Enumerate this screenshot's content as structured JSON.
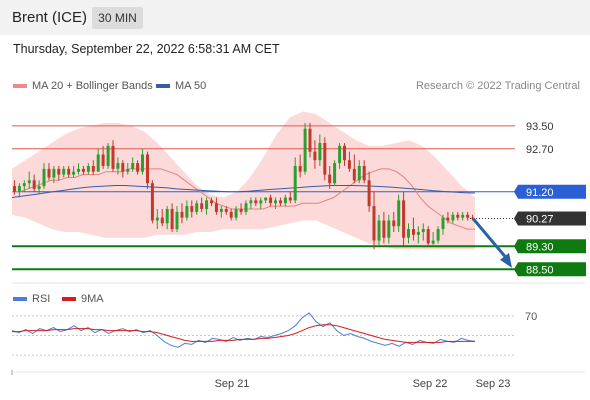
{
  "header": {
    "title": "Brent (ICE)",
    "timeframe": "30 MIN"
  },
  "timestamp": "Thursday, September 22, 2022 6:58:31 AM CET",
  "legend": {
    "ma20_label": "MA 20 + Bollinger Bands",
    "ma50_label": "MA 50",
    "credit": "Research © 2022 Trading Central"
  },
  "rsi_legend": {
    "rsi_label": "RSI",
    "ma9_label": "9MA"
  },
  "colors": {
    "bollinger_fill": "#fbd3d3",
    "ma20": "#e78080",
    "ma50": "#3a5ba8",
    "up": "#2e9e2e",
    "down": "#c0392b",
    "resistance": "#e05a4f",
    "support": "#0f7a0f",
    "pivot": "#2a5fd6",
    "current": "#333333",
    "arrow": "#2b61a8",
    "rsi": "#4a7fd4",
    "rsi_ma": "#d02020"
  },
  "chart_data": {
    "type": "candlestick",
    "x_ticks": [
      "Sep 21",
      "Sep 22",
      "Sep 23"
    ],
    "ylim": [
      88.3,
      94.4
    ],
    "levels": [
      {
        "value": 93.5,
        "label": "93.50",
        "kind": "resistance"
      },
      {
        "value": 92.7,
        "label": "92.70",
        "kind": "resistance"
      },
      {
        "value": 91.2,
        "label": "91.20",
        "kind": "pivot"
      },
      {
        "value": 90.27,
        "label": "90.27",
        "kind": "current"
      },
      {
        "value": 89.3,
        "label": "89.30",
        "kind": "support"
      },
      {
        "value": 88.5,
        "label": "88.50",
        "kind": "support"
      }
    ],
    "candles": [
      [
        91.4,
        91.6,
        91.1,
        91.2
      ],
      [
        91.2,
        91.5,
        91.0,
        91.4
      ],
      [
        91.4,
        91.6,
        91.2,
        91.5
      ],
      [
        91.5,
        91.9,
        91.3,
        91.6
      ],
      [
        91.6,
        91.8,
        91.2,
        91.3
      ],
      [
        91.3,
        91.6,
        91.1,
        91.4
      ],
      [
        91.4,
        92.2,
        91.3,
        92.0
      ],
      [
        92.0,
        92.2,
        91.6,
        91.7
      ],
      [
        91.7,
        92.1,
        91.5,
        92.0
      ],
      [
        92.0,
        92.1,
        91.6,
        91.8
      ],
      [
        91.8,
        92.1,
        91.7,
        92.0
      ],
      [
        92.0,
        92.1,
        91.7,
        91.8
      ],
      [
        91.8,
        92.1,
        91.7,
        91.9
      ],
      [
        91.9,
        92.2,
        91.8,
        92.0
      ],
      [
        92.0,
        92.1,
        91.8,
        91.9
      ],
      [
        91.9,
        92.2,
        91.8,
        92.1
      ],
      [
        92.1,
        92.3,
        91.8,
        91.9
      ],
      [
        91.9,
        92.7,
        91.9,
        92.5
      ],
      [
        92.5,
        92.8,
        92.0,
        92.1
      ],
      [
        92.1,
        92.9,
        92.0,
        92.8
      ],
      [
        92.8,
        93.0,
        91.9,
        92.0
      ],
      [
        92.0,
        92.4,
        91.8,
        92.2
      ],
      [
        92.2,
        92.3,
        91.7,
        91.9
      ],
      [
        91.9,
        92.2,
        91.8,
        92.0
      ],
      [
        92.0,
        92.4,
        91.9,
        92.2
      ],
      [
        92.2,
        92.3,
        91.8,
        91.9
      ],
      [
        91.9,
        92.7,
        91.8,
        92.5
      ],
      [
        92.5,
        92.6,
        91.3,
        91.5
      ],
      [
        91.5,
        91.6,
        90.1,
        90.2
      ],
      [
        90.2,
        90.6,
        89.9,
        90.3
      ],
      [
        90.3,
        90.6,
        90.0,
        90.1
      ],
      [
        90.1,
        90.7,
        89.9,
        90.6
      ],
      [
        90.6,
        90.8,
        89.8,
        89.9
      ],
      [
        89.9,
        90.7,
        89.8,
        90.5
      ],
      [
        90.5,
        90.8,
        90.1,
        90.3
      ],
      [
        90.3,
        90.9,
        90.2,
        90.7
      ],
      [
        90.7,
        90.9,
        90.3,
        90.5
      ],
      [
        90.5,
        90.9,
        90.4,
        90.8
      ],
      [
        90.8,
        91.0,
        90.5,
        90.6
      ],
      [
        90.6,
        91.0,
        90.4,
        90.9
      ],
      [
        90.9,
        91.0,
        90.7,
        90.8
      ],
      [
        90.8,
        91.0,
        90.4,
        90.5
      ],
      [
        90.5,
        90.7,
        90.3,
        90.6
      ],
      [
        90.6,
        90.7,
        90.4,
        90.5
      ],
      [
        90.5,
        90.6,
        90.2,
        90.3
      ],
      [
        90.3,
        90.7,
        90.2,
        90.6
      ],
      [
        90.6,
        90.8,
        90.4,
        90.5
      ],
      [
        90.5,
        90.9,
        90.4,
        90.8
      ],
      [
        90.8,
        91.0,
        90.6,
        90.9
      ],
      [
        90.9,
        91.0,
        90.7,
        90.8
      ],
      [
        90.8,
        91.0,
        90.6,
        90.9
      ],
      [
        90.9,
        91.0,
        90.8,
        91.0
      ],
      [
        91.0,
        91.1,
        90.7,
        90.8
      ],
      [
        90.8,
        91.0,
        90.6,
        90.9
      ],
      [
        90.9,
        91.0,
        90.7,
        90.8
      ],
      [
        90.8,
        91.1,
        90.7,
        91.0
      ],
      [
        91.0,
        91.2,
        90.8,
        90.9
      ],
      [
        90.9,
        92.4,
        90.8,
        92.1
      ],
      [
        92.1,
        92.5,
        91.7,
        91.9
      ],
      [
        91.9,
        93.6,
        91.8,
        93.4
      ],
      [
        93.4,
        93.6,
        92.4,
        92.6
      ],
      [
        92.6,
        93.0,
        92.0,
        92.3
      ],
      [
        92.3,
        93.2,
        92.1,
        92.9
      ],
      [
        92.9,
        93.1,
        91.6,
        91.8
      ],
      [
        91.8,
        92.1,
        91.3,
        91.5
      ],
      [
        91.5,
        92.3,
        91.4,
        92.2
      ],
      [
        92.2,
        92.9,
        92.0,
        92.8
      ],
      [
        92.8,
        92.9,
        92.1,
        92.3
      ],
      [
        92.3,
        92.6,
        91.9,
        92.0
      ],
      [
        92.0,
        92.5,
        91.5,
        91.6
      ],
      [
        91.6,
        92.3,
        91.5,
        92.1
      ],
      [
        92.1,
        92.3,
        91.5,
        91.6
      ],
      [
        91.6,
        91.9,
        90.5,
        90.7
      ],
      [
        90.7,
        91.2,
        89.2,
        89.5
      ],
      [
        89.5,
        90.4,
        89.3,
        90.2
      ],
      [
        90.2,
        90.5,
        89.4,
        89.6
      ],
      [
        89.6,
        90.4,
        89.4,
        90.2
      ],
      [
        90.2,
        90.5,
        89.8,
        90.0
      ],
      [
        90.0,
        91.1,
        89.8,
        90.9
      ],
      [
        90.9,
        91.2,
        89.3,
        89.6
      ],
      [
        89.6,
        90.1,
        89.4,
        89.9
      ],
      [
        89.9,
        90.3,
        89.5,
        89.7
      ],
      [
        89.7,
        90.0,
        89.4,
        89.8
      ],
      [
        89.8,
        90.1,
        89.5,
        89.9
      ],
      [
        89.9,
        90.0,
        89.3,
        89.4
      ],
      [
        89.4,
        89.8,
        89.3,
        89.5
      ],
      [
        89.5,
        90.0,
        89.4,
        89.9
      ],
      [
        89.9,
        90.4,
        89.7,
        90.3
      ],
      [
        90.3,
        90.5,
        90.1,
        90.2
      ],
      [
        90.2,
        90.5,
        90.1,
        90.4
      ],
      [
        90.4,
        90.5,
        90.2,
        90.3
      ],
      [
        90.3,
        90.5,
        90.2,
        90.4
      ],
      [
        90.4,
        90.5,
        90.2,
        90.3
      ],
      [
        90.3,
        90.4,
        90.2,
        90.27
      ]
    ],
    "ma20": [
      91.2,
      91.2,
      91.3,
      91.4,
      91.5,
      91.6,
      91.6,
      91.7,
      91.7,
      91.8,
      91.8,
      91.8,
      91.9,
      91.9,
      91.9,
      92.0,
      92.0,
      92.0,
      92.0,
      92.0,
      91.9,
      91.8,
      91.6,
      91.4,
      91.2,
      91.0,
      90.8,
      90.7,
      90.6,
      90.6,
      90.6,
      90.6,
      90.6,
      90.7,
      90.7,
      90.7,
      90.7,
      90.8,
      90.8,
      90.8,
      90.9,
      91.0,
      91.2,
      91.4,
      91.6,
      91.8,
      91.9,
      92.0,
      92.0,
      91.9,
      91.7,
      91.4,
      91.0,
      90.7,
      90.5,
      90.3,
      90.1,
      90.0,
      89.9,
      89.9
    ],
    "ma50": [
      91.0,
      91.05,
      91.1,
      91.15,
      91.2,
      91.25,
      91.3,
      91.35,
      91.38,
      91.4,
      91.42,
      91.42,
      91.4,
      91.38,
      91.36,
      91.34,
      91.3,
      91.28,
      91.26,
      91.24,
      91.22,
      91.2,
      91.2,
      91.22,
      91.25,
      91.28,
      91.3,
      91.33,
      91.35,
      91.38,
      91.4,
      91.42,
      91.42,
      91.42,
      91.41,
      91.4,
      91.38,
      91.36,
      91.33,
      91.3,
      91.27,
      91.24,
      91.21,
      91.19,
      91.17,
      91.16
    ],
    "bb_upper": [
      92.0,
      92.3,
      92.6,
      92.9,
      93.2,
      93.4,
      93.5,
      93.6,
      93.6,
      93.5,
      93.3,
      92.9,
      92.4,
      91.9,
      91.4,
      91.1,
      91.0,
      91.2,
      91.7,
      92.4,
      93.2,
      93.8,
      94.0,
      93.9,
      93.6,
      93.3,
      93.0,
      92.8,
      92.8,
      92.9,
      93.0,
      92.8,
      92.4,
      91.9,
      91.4,
      91.0
    ],
    "bb_lower": [
      90.4,
      90.3,
      90.1,
      89.9,
      89.8,
      89.8,
      89.7,
      89.6,
      89.6,
      89.6,
      89.6,
      89.7,
      89.7,
      89.7,
      89.8,
      89.8,
      89.9,
      89.9,
      89.9,
      89.9,
      90.0,
      90.1,
      90.2,
      90.2,
      90.0,
      89.8,
      89.6,
      89.4,
      89.3,
      89.2,
      89.2,
      89.2,
      89.2,
      89.2,
      89.2,
      89.2
    ],
    "rsi": {
      "ticks": [
        "70"
      ],
      "ylim": [
        20,
        80
      ],
      "rsi": [
        55,
        53,
        56,
        52,
        57,
        55,
        58,
        54,
        56,
        60,
        55,
        58,
        53,
        56,
        52,
        55,
        57,
        54,
        56,
        53,
        55,
        50,
        44,
        40,
        38,
        42,
        41,
        45,
        43,
        47,
        46,
        44,
        48,
        45,
        47,
        46,
        49,
        48,
        50,
        52,
        55,
        60,
        68,
        73,
        64,
        59,
        63,
        55,
        50,
        52,
        49,
        47,
        44,
        42,
        40,
        42,
        39,
        43,
        41,
        45,
        43,
        42,
        46,
        44,
        43,
        47,
        45,
        44
      ],
      "ma9": [
        54,
        54,
        55,
        55,
        55,
        55,
        56,
        56,
        56,
        57,
        57,
        57,
        56,
        56,
        55,
        55,
        55,
        55,
        55,
        54,
        54,
        53,
        51,
        49,
        47,
        45,
        44,
        44,
        44,
        44,
        45,
        45,
        45,
        46,
        46,
        46,
        47,
        47,
        48,
        49,
        50,
        52,
        55,
        58,
        60,
        61,
        61,
        60,
        58,
        56,
        54,
        52,
        50,
        48,
        46,
        45,
        44,
        43,
        43,
        43,
        43,
        43,
        43,
        44,
        44,
        44,
        44,
        44
      ]
    }
  }
}
